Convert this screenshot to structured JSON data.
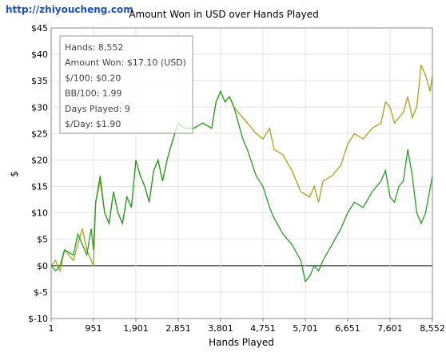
{
  "watermark": "http://zhiyoucheng.com",
  "chart_data": {
    "type": "line",
    "title": "Amount Won in USD over Hands Played",
    "x_label": "Hands Played",
    "y_label": "$",
    "xlim": [
      1,
      8552
    ],
    "ylim": [
      -10,
      45
    ],
    "xticks": [
      1,
      951,
      {
        "value": 1901,
        "label": "1,901"
      },
      {
        "value": 2851,
        "label": "2,851"
      },
      {
        "value": 3801,
        "label": "3,801"
      },
      {
        "value": 4751,
        "label": "4,751"
      },
      {
        "value": 5701,
        "label": "5,701"
      },
      {
        "value": 6651,
        "label": "6,651"
      },
      {
        "value": 7601,
        "label": "7,601"
      },
      {
        "value": 8552,
        "label": "8,552"
      }
    ],
    "yticks": [
      {
        "value": -10,
        "label": "$-10"
      },
      {
        "value": -5,
        "label": "$-5"
      },
      {
        "value": 0,
        "label": "$0"
      },
      {
        "value": 5,
        "label": "$5"
      },
      {
        "value": 10,
        "label": "$10"
      },
      {
        "value": 15,
        "label": "$15"
      },
      {
        "value": 20,
        "label": "$20"
      },
      {
        "value": 25,
        "label": "$25"
      },
      {
        "value": 30,
        "label": "$30"
      },
      {
        "value": 35,
        "label": "$35"
      },
      {
        "value": 40,
        "label": "$40"
      },
      {
        "value": 45,
        "label": "$45"
      }
    ],
    "grid": true,
    "series": [
      {
        "color": "#a8a21c",
        "x": [
          1,
          100,
          200,
          300,
          500,
          600,
          700,
          800,
          900,
          951,
          1000,
          1100,
          1200,
          1300,
          1400,
          1500,
          1600,
          1700,
          1800,
          1901,
          2000,
          2100,
          2200,
          2300,
          2400,
          2500,
          2600,
          2700,
          2851,
          3000,
          3200,
          3400,
          3600,
          3700,
          3801,
          3900,
          4000,
          4100,
          4200,
          4400,
          4600,
          4751,
          4900,
          5000,
          5200,
          5400,
          5600,
          5800,
          5900,
          6000,
          6100,
          6300,
          6500,
          6651,
          6800,
          7000,
          7200,
          7400,
          7500,
          7601,
          7700,
          7800,
          7900,
          8000,
          8100,
          8200,
          8300,
          8400,
          8500,
          8552
        ],
        "values": [
          0,
          1,
          -1,
          3,
          1,
          4,
          7,
          3,
          1,
          0,
          12,
          16,
          10,
          8,
          14,
          10,
          8,
          13,
          11,
          20,
          17,
          15,
          12,
          18,
          20,
          16,
          20,
          23,
          27,
          26,
          26,
          27,
          26,
          31,
          33,
          31,
          32,
          30,
          29,
          27,
          25,
          24,
          26,
          22,
          21,
          18,
          14,
          13,
          15,
          12,
          16,
          17,
          19,
          23,
          25,
          24,
          26,
          27,
          31,
          30,
          27,
          28,
          29,
          32,
          28,
          30,
          38,
          36,
          33,
          36
        ]
      },
      {
        "color": "#22a022",
        "x": [
          1,
          100,
          200,
          300,
          500,
          600,
          700,
          800,
          900,
          951,
          1000,
          1100,
          1200,
          1300,
          1400,
          1500,
          1600,
          1700,
          1800,
          1901,
          2000,
          2100,
          2200,
          2300,
          2400,
          2500,
          2600,
          2700,
          2851,
          3000,
          3200,
          3400,
          3600,
          3700,
          3801,
          3900,
          4000,
          4100,
          4200,
          4300,
          4400,
          4600,
          4751,
          4900,
          5000,
          5200,
          5400,
          5600,
          5701,
          5800,
          5900,
          6000,
          6100,
          6300,
          6500,
          6651,
          6800,
          7000,
          7200,
          7400,
          7500,
          7601,
          7700,
          7800,
          7900,
          8000,
          8100,
          8200,
          8300,
          8400,
          8552
        ],
        "values": [
          0,
          -1,
          0,
          3,
          2,
          6,
          4,
          2,
          7,
          3,
          12,
          17,
          10,
          8,
          14,
          10,
          8,
          13,
          11,
          20,
          17,
          15,
          12,
          18,
          20,
          16,
          20,
          23,
          27,
          26,
          26,
          27,
          26,
          31,
          33,
          31,
          32,
          30,
          27,
          24,
          22,
          17,
          15,
          11,
          9,
          6,
          4,
          1,
          -3,
          -2,
          0,
          -1,
          1,
          4,
          7,
          10,
          12,
          11,
          14,
          16,
          18,
          13,
          12,
          15,
          16,
          22,
          17,
          10,
          8,
          10,
          17
        ]
      }
    ]
  },
  "stats_box": {
    "lines": [
      "Hands: 8,552",
      "Amount Won: $17.10 (USD)",
      "$/100: $0.20",
      "BB/100: 1.99",
      "Days Played: 9",
      "$/Day: $1.90"
    ]
  }
}
